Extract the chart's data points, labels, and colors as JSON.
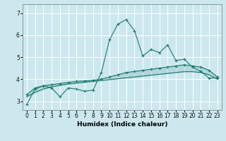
{
  "xlabel": "Humidex (Indice chaleur)",
  "bg_color": "#cce8ee",
  "grid_color": "#ffffff",
  "line_color": "#1a7a6e",
  "x_ticks": [
    0,
    1,
    2,
    3,
    4,
    5,
    6,
    7,
    8,
    9,
    10,
    11,
    12,
    13,
    14,
    15,
    16,
    17,
    18,
    19,
    20,
    21,
    22,
    23
  ],
  "y_ticks": [
    3,
    4,
    5,
    6,
    7
  ],
  "ylim": [
    2.6,
    7.4
  ],
  "xlim": [
    -0.5,
    23.5
  ],
  "line1_x": [
    0,
    1,
    2,
    3,
    4,
    5,
    6,
    7,
    8,
    9,
    10,
    11,
    12,
    13,
    14,
    15,
    16,
    17,
    18,
    19,
    20,
    21,
    22,
    23
  ],
  "line1_y": [
    2.85,
    3.55,
    3.7,
    3.6,
    3.2,
    3.6,
    3.55,
    3.45,
    3.5,
    4.3,
    5.8,
    6.5,
    6.7,
    6.2,
    5.05,
    5.35,
    5.2,
    5.55,
    4.85,
    4.9,
    4.55,
    4.35,
    4.05,
    4.05
  ],
  "line2_x": [
    0,
    1,
    2,
    3,
    4,
    5,
    6,
    7,
    8,
    9,
    10,
    11,
    12,
    13,
    14,
    15,
    16,
    17,
    18,
    19,
    20,
    21,
    22,
    23
  ],
  "line2_y": [
    3.3,
    3.6,
    3.7,
    3.75,
    3.8,
    3.85,
    3.9,
    3.92,
    3.95,
    4.0,
    4.1,
    4.2,
    4.3,
    4.35,
    4.4,
    4.45,
    4.5,
    4.55,
    4.6,
    4.65,
    4.6,
    4.55,
    4.4,
    4.1
  ],
  "line3_x": [
    0,
    1,
    2,
    3,
    4,
    5,
    6,
    7,
    8,
    9,
    10,
    11,
    12,
    13,
    14,
    15,
    16,
    17,
    18,
    19,
    20,
    21,
    22,
    23
  ],
  "line3_y": [
    3.2,
    3.4,
    3.55,
    3.65,
    3.72,
    3.78,
    3.82,
    3.86,
    3.9,
    3.94,
    3.98,
    4.02,
    4.06,
    4.1,
    4.14,
    4.18,
    4.22,
    4.26,
    4.3,
    4.34,
    4.34,
    4.3,
    4.2,
    4.0
  ],
  "tick_fontsize": 5.5,
  "xlabel_fontsize": 6.5
}
